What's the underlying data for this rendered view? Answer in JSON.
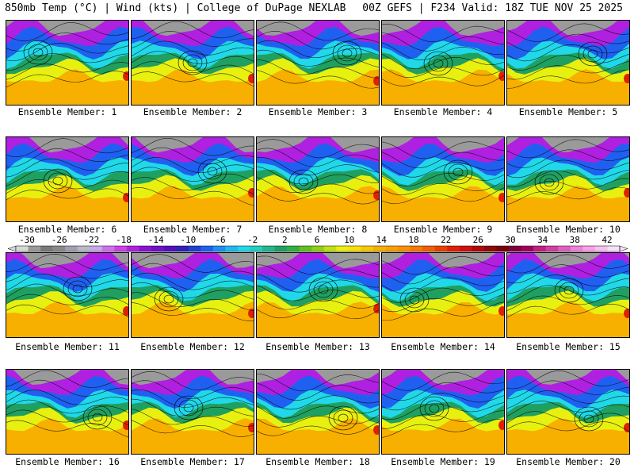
{
  "header": {
    "left": "850mb Temp (°C) | Wind (kts) | College of DuPage NEXLAB",
    "right": "00Z GEFS | F234 Valid: 18Z TUE NOV 25 2025"
  },
  "members": [
    {
      "label": "Ensemble Member: 1"
    },
    {
      "label": "Ensemble Member: 2"
    },
    {
      "label": "Ensemble Member: 3"
    },
    {
      "label": "Ensemble Member: 4"
    },
    {
      "label": "Ensemble Member: 5"
    },
    {
      "label": "Ensemble Member: 6"
    },
    {
      "label": "Ensemble Member: 7"
    },
    {
      "label": "Ensemble Member: 8"
    },
    {
      "label": "Ensemble Member: 9"
    },
    {
      "label": "Ensemble Member: 10"
    },
    {
      "label": "Ensemble Member: 11"
    },
    {
      "label": "Ensemble Member: 12"
    },
    {
      "label": "Ensemble Member: 13"
    },
    {
      "label": "Ensemble Member: 14"
    },
    {
      "label": "Ensemble Member: 15"
    },
    {
      "label": "Ensemble Member: 16"
    },
    {
      "label": "Ensemble Member: 17"
    },
    {
      "label": "Ensemble Member: 18"
    },
    {
      "label": "Ensemble Member: 19"
    },
    {
      "label": "Ensemble Member: 20"
    }
  ],
  "colorbar": {
    "labels": [
      "-30",
      "-26",
      "-22",
      "-18",
      "-14",
      "-10",
      "-6",
      "-2",
      "2",
      "6",
      "10",
      "14",
      "18",
      "22",
      "26",
      "30",
      "34",
      "38",
      "42"
    ],
    "colors": [
      "#d8d8d8",
      "#9a9a9a",
      "#7a7a7a",
      "#8a8a8a",
      "#a0a0b0",
      "#b8b8c8",
      "#c8a8e8",
      "#d070f0",
      "#d040e8",
      "#b020e0",
      "#8a10d8",
      "#7010c8",
      "#5010c0",
      "#3020b8",
      "#2040d0",
      "#2060f0",
      "#2090f0",
      "#20b8f0",
      "#20d8e8",
      "#20d0c0",
      "#20b890",
      "#20a060",
      "#30b040",
      "#60c020",
      "#90d010",
      "#c0e010",
      "#e8f010",
      "#f8e000",
      "#f8c800",
      "#f8b000",
      "#f8a000",
      "#f89000",
      "#f87800",
      "#f06000",
      "#e84000",
      "#e02000",
      "#d01010",
      "#b00808",
      "#900808",
      "#780010",
      "#800040",
      "#a00060",
      "#c02080",
      "#d040a0",
      "#e060c0",
      "#f080d8",
      "#f8a0e8",
      "#f8c0f0",
      "#f8e0f8"
    ],
    "band_colors": {
      "arctic": "#9a9a9a",
      "cold": "#b020e0",
      "cool": "#2060f0",
      "mild": "#20d8e8",
      "warm": "#20a060",
      "hot": "#e8f010",
      "tropical": "#f8b000",
      "extreme": "#e02000"
    }
  }
}
